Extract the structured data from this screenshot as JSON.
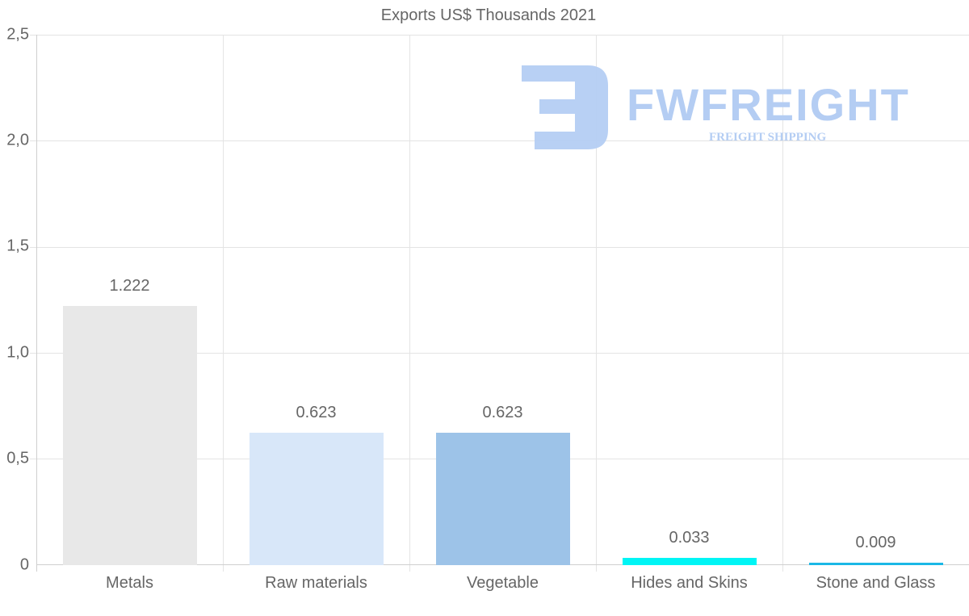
{
  "chart_data": {
    "type": "bar",
    "title": "Exports US$ Thousands 2021",
    "xlabel": "",
    "ylabel": "",
    "categories": [
      "Metals",
      "Raw materials",
      "Vegetable",
      "Hides and Skins",
      "Stone and Glass"
    ],
    "values": [
      1.222,
      0.623,
      0.623,
      0.033,
      0.009
    ],
    "value_labels": [
      "1.222",
      "0.623",
      "0.623",
      "0.033",
      "0.009"
    ],
    "colors": [
      "#e8e8e8",
      "#d8e7f9",
      "#9dc3e8",
      "#00f5f5",
      "#1ab8e6"
    ],
    "ylim": [
      0,
      2.5
    ],
    "yticks": [
      "0",
      "0,5",
      "1,0",
      "1,5",
      "2,0",
      "2,5"
    ],
    "grid": true,
    "legend": "none"
  },
  "watermark": {
    "brand": "FWFREIGHT",
    "tagline": "FREIGHT SHIPPING",
    "color": "#b4cdf3"
  }
}
